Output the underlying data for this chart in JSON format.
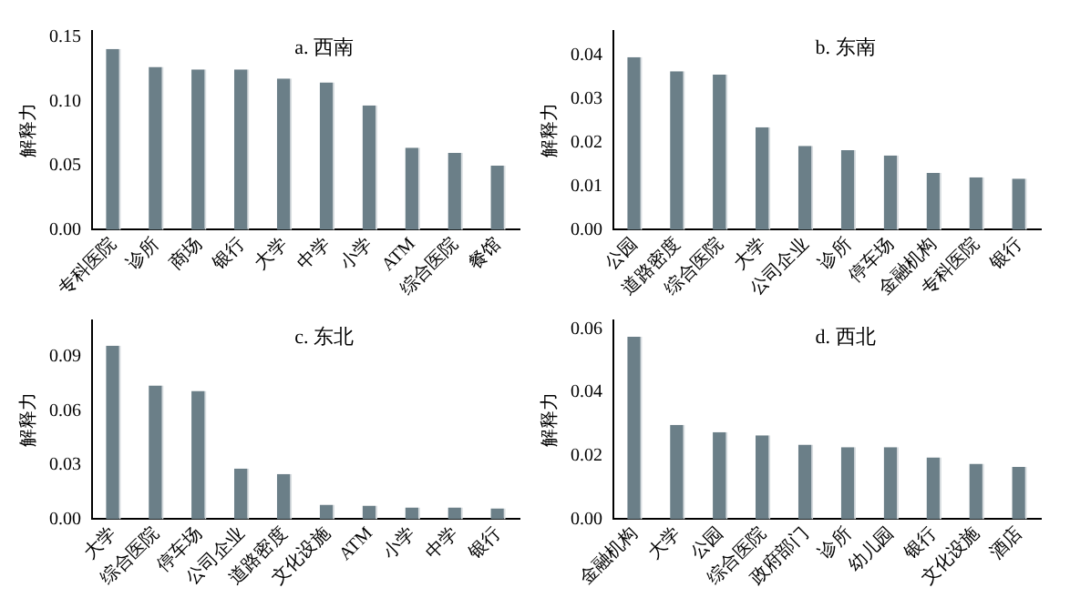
{
  "chart_data": [
    {
      "type": "bar",
      "title": "a. 西南",
      "ylabel": "解释力",
      "categories": [
        "专科医院",
        "诊所",
        "商场",
        "银行",
        "大学",
        "中学",
        "小学",
        "ATM",
        "综合医院",
        "餐馆"
      ],
      "values": [
        0.141,
        0.127,
        0.125,
        0.125,
        0.118,
        0.115,
        0.097,
        0.064,
        0.06,
        0.05
      ],
      "color": "#6b7f88",
      "ylim": [
        0,
        0.155
      ],
      "yticks": [
        {
          "value": 0,
          "label": "0.00"
        },
        {
          "value": 0.05,
          "label": "0.05"
        },
        {
          "value": 0.1,
          "label": "0.10"
        },
        {
          "value": 0.15,
          "label": "0.15"
        }
      ],
      "grid": false
    },
    {
      "type": "bar",
      "title": "b. 东南",
      "ylabel": "解释力",
      "categories": [
        "公园",
        "道路密度",
        "综合医院",
        "大学",
        "公司企业",
        "诊所",
        "停车场",
        "金融机构",
        "专科医院",
        "银行"
      ],
      "values": [
        0.0395,
        0.0363,
        0.0355,
        0.0235,
        0.0192,
        0.0182,
        0.017,
        0.013,
        0.012,
        0.0117
      ],
      "color": "#6b7f88",
      "ylim": [
        0,
        0.0455
      ],
      "yticks": [
        {
          "value": 0,
          "label": "0.00"
        },
        {
          "value": 0.01,
          "label": "0.01"
        },
        {
          "value": 0.02,
          "label": "0.02"
        },
        {
          "value": 0.03,
          "label": "0.03"
        },
        {
          "value": 0.04,
          "label": "0.04"
        }
      ],
      "grid": false
    },
    {
      "type": "bar",
      "title": "c. 东北",
      "ylabel": "解释力",
      "categories": [
        "大学",
        "综合医院",
        "停车场",
        "公司企业",
        "道路密度",
        "文化设施",
        "ATM",
        "小学",
        "中学",
        "银行"
      ],
      "values": [
        0.096,
        0.074,
        0.071,
        0.028,
        0.025,
        0.008,
        0.0075,
        0.0065,
        0.0065,
        0.006
      ],
      "color": "#6b7f88",
      "ylim": [
        0,
        0.11
      ],
      "yticks": [
        {
          "value": 0,
          "label": "0.00"
        },
        {
          "value": 0.03,
          "label": "0.03"
        },
        {
          "value": 0.06,
          "label": "0.06"
        },
        {
          "value": 0.09,
          "label": "0.09"
        }
      ],
      "grid": false
    },
    {
      "type": "bar",
      "title": "d. 西北",
      "ylabel": "解释力",
      "categories": [
        "金融机构",
        "大学",
        "公园",
        "综合医院",
        "政府部门",
        "诊所",
        "幼儿园",
        "银行",
        "文化设施",
        "酒店"
      ],
      "values": [
        0.0575,
        0.0298,
        0.0275,
        0.0265,
        0.0235,
        0.0227,
        0.0227,
        0.0195,
        0.0175,
        0.0165
      ],
      "color": "#6b7f88",
      "ylim": [
        0,
        0.0627
      ],
      "yticks": [
        {
          "value": 0,
          "label": "0.00"
        },
        {
          "value": 0.02,
          "label": "0.02"
        },
        {
          "value": 0.04,
          "label": "0.04"
        },
        {
          "value": 0.06,
          "label": "0.06"
        }
      ],
      "grid": false
    }
  ]
}
